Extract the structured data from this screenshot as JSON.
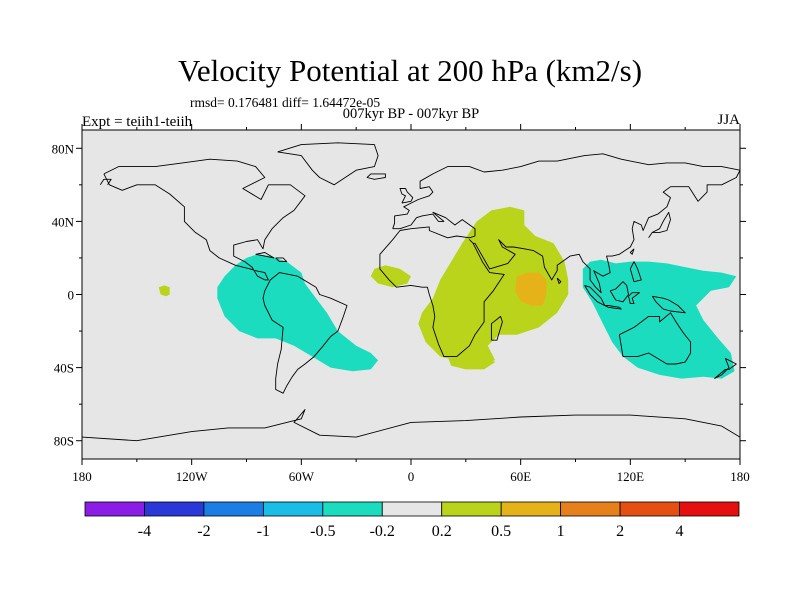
{
  "chart_data": {
    "type": "heatmap",
    "title": "Velocity Potential at 200 hPa (km2/s)",
    "stats_text": "rmsd= 0.176481 diff= 1.64472e-05",
    "center_label": "007kyr BP - 007kyr BP",
    "left_label": "Expt = teiih1-teiih",
    "right_label": "JJA",
    "projection": "cylindrical equidistant",
    "x_range": [
      -180,
      180
    ],
    "y_range": [
      -90,
      90
    ],
    "x_ticks": [
      {
        "value": -180,
        "label": "180"
      },
      {
        "value": -120,
        "label": "120W"
      },
      {
        "value": -60,
        "label": "60W"
      },
      {
        "value": 0,
        "label": "0"
      },
      {
        "value": 60,
        "label": "60E"
      },
      {
        "value": 120,
        "label": "120E"
      },
      {
        "value": 180,
        "label": "180"
      }
    ],
    "y_ticks": [
      {
        "value": 80,
        "label": "80N"
      },
      {
        "value": 40,
        "label": "40N"
      },
      {
        "value": 0,
        "label": "0"
      },
      {
        "value": -40,
        "label": "40S"
      },
      {
        "value": -80,
        "label": "80S"
      }
    ],
    "colorbar": {
      "colors": [
        "#8a1ee6",
        "#2a38d8",
        "#1a7ee4",
        "#19bde6",
        "#1cdcc0",
        "#e6e6e6",
        "#b9d41b",
        "#e6b21a",
        "#e6801a",
        "#e64f12",
        "#e60f0f"
      ],
      "labels": [
        "-4",
        "-2",
        "-1",
        "-0.5",
        "-0.2",
        "0.2",
        "0.5",
        "1",
        "2",
        "4"
      ]
    },
    "background_color": "#e6e6e6",
    "regions": [
      {
        "name": "Americas negative anomaly",
        "level": "-0.5 to -0.2",
        "color": "#1cdcc0",
        "outline": [
          [
            -102,
            10
          ],
          [
            -96,
            16
          ],
          [
            -90,
            20
          ],
          [
            -84,
            22
          ],
          [
            -77,
            21
          ],
          [
            -68,
            18
          ],
          [
            -60,
            12
          ],
          [
            -58,
            6
          ],
          [
            -52,
            -2
          ],
          [
            -46,
            -10
          ],
          [
            -40,
            -20
          ],
          [
            -30,
            -28
          ],
          [
            -22,
            -32
          ],
          [
            -18,
            -36
          ],
          [
            -22,
            -41
          ],
          [
            -32,
            -42
          ],
          [
            -44,
            -40
          ],
          [
            -54,
            -34
          ],
          [
            -64,
            -28
          ],
          [
            -74,
            -24
          ],
          [
            -84,
            -24
          ],
          [
            -94,
            -20
          ],
          [
            -102,
            -12
          ],
          [
            -106,
            -2
          ],
          [
            -106,
            4
          ]
        ]
      },
      {
        "name": "Maritime continent negative anomaly",
        "level": "-0.5 to -0.2",
        "color": "#1cdcc0",
        "outline": [
          [
            94,
            14
          ],
          [
            98,
            18
          ],
          [
            104,
            19
          ],
          [
            112,
            17
          ],
          [
            120,
            18
          ],
          [
            130,
            18
          ],
          [
            140,
            17
          ],
          [
            150,
            15
          ],
          [
            160,
            13
          ],
          [
            170,
            12
          ],
          [
            178,
            10
          ],
          [
            174,
            4
          ],
          [
            164,
            2
          ],
          [
            156,
            -6
          ],
          [
            160,
            -14
          ],
          [
            168,
            -24
          ],
          [
            175,
            -32
          ],
          [
            177,
            -42
          ],
          [
            170,
            -46
          ],
          [
            160,
            -45
          ],
          [
            148,
            -46
          ],
          [
            136,
            -44
          ],
          [
            124,
            -40
          ],
          [
            116,
            -34
          ],
          [
            110,
            -26
          ],
          [
            104,
            -14
          ],
          [
            99,
            -4
          ],
          [
            94,
            4
          ]
        ]
      },
      {
        "name": "Africa Indian Ocean positive anomaly",
        "level": "0.2 to 0.5",
        "color": "#b9d41b",
        "outline": [
          [
            36,
            40
          ],
          [
            44,
            46
          ],
          [
            54,
            48
          ],
          [
            62,
            46
          ],
          [
            62,
            38
          ],
          [
            68,
            32
          ],
          [
            78,
            28
          ],
          [
            84,
            18
          ],
          [
            86,
            8
          ],
          [
            86,
            0
          ],
          [
            80,
            -10
          ],
          [
            70,
            -18
          ],
          [
            58,
            -22
          ],
          [
            48,
            -22
          ],
          [
            42,
            -28
          ],
          [
            46,
            -36
          ],
          [
            36,
            -38
          ],
          [
            24,
            -36
          ],
          [
            16,
            -34
          ],
          [
            8,
            -26
          ],
          [
            4,
            -16
          ],
          [
            6,
            -10
          ],
          [
            12,
            -2
          ],
          [
            16,
            8
          ],
          [
            22,
            18
          ],
          [
            28,
            28
          ]
        ]
      },
      {
        "name": "South Atlantic positive patch",
        "level": "0.2 to 0.5",
        "color": "#b9d41b",
        "outline": [
          [
            20,
            -34
          ],
          [
            30,
            -33
          ],
          [
            42,
            -34
          ],
          [
            46,
            -37
          ],
          [
            40,
            -41
          ],
          [
            30,
            -41
          ],
          [
            22,
            -39
          ]
        ]
      },
      {
        "name": "Tropical Atlantic positive patch",
        "level": "0.2 to 0.5",
        "color": "#b9d41b",
        "outline": [
          [
            -20,
            14
          ],
          [
            -14,
            16
          ],
          [
            -6,
            14
          ],
          [
            0,
            10
          ],
          [
            -2,
            6
          ],
          [
            -10,
            4
          ],
          [
            -18,
            6
          ],
          [
            -22,
            10
          ]
        ]
      },
      {
        "name": "Eastern Pacific positive patch",
        "level": "0.2 to 0.5",
        "color": "#b9d41b",
        "outline": [
          [
            -138,
            4
          ],
          [
            -135,
            5
          ],
          [
            -132,
            4
          ],
          [
            -132,
            0
          ],
          [
            -134,
            -1
          ],
          [
            -137,
            0
          ]
        ]
      },
      {
        "name": "Arabian Sea maximum",
        "level": "0.5 to 1",
        "color": "#e6b21a",
        "outline": [
          [
            58,
            10
          ],
          [
            64,
            12
          ],
          [
            70,
            12
          ],
          [
            74,
            8
          ],
          [
            74,
            0
          ],
          [
            72,
            -6
          ],
          [
            66,
            -6
          ],
          [
            60,
            -4
          ],
          [
            57,
            2
          ]
        ]
      }
    ]
  }
}
